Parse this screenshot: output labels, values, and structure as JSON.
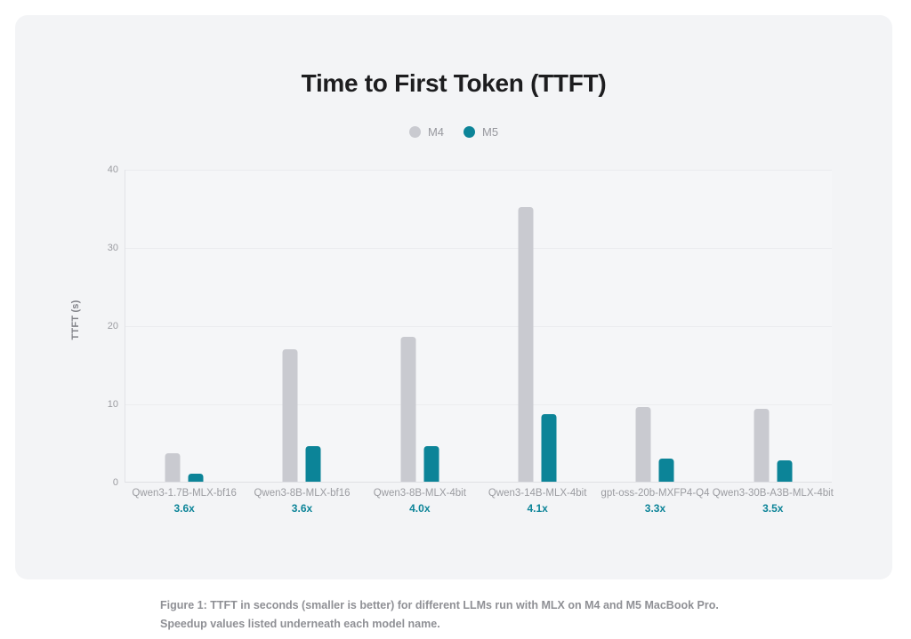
{
  "title": "Time to First Token (TTFT)",
  "legend": [
    {
      "label": "M4",
      "color": "#c9cad0"
    },
    {
      "label": "M5",
      "color": "#0c8498"
    }
  ],
  "y_axis": {
    "label": "TTFT (s)",
    "ticks": [
      40,
      30,
      20,
      10,
      0
    ],
    "max": 40
  },
  "chart_data": {
    "type": "bar",
    "title": "Time to First Token (TTFT)",
    "categories": [
      "Qwen3-1.7B-MLX-bf16",
      "Qwen3-8B-MLX-bf16",
      "Qwen3-8B-MLX-4bit",
      "Qwen3-14B-MLX-4bit",
      "gpt-oss-20b-MXFP4-Q4",
      "Qwen3-30B-A3B-MLX-4bit"
    ],
    "series": [
      {
        "name": "M4",
        "color": "#c9cad0",
        "values": [
          3.6,
          16.9,
          18.5,
          35.1,
          9.5,
          9.3
        ]
      },
      {
        "name": "M5",
        "color": "#0c8498",
        "values": [
          1.0,
          4.6,
          4.6,
          8.6,
          2.9,
          2.7
        ]
      }
    ],
    "speedups": [
      "3.6x",
      "3.6x",
      "4.0x",
      "4.1x",
      "3.3x",
      "3.5x"
    ],
    "xlabel": "",
    "ylabel": "TTFT (s)",
    "ylim": [
      0,
      40
    ],
    "grid": true,
    "legend_position": "top-center"
  },
  "speedup_color": "#0c8498",
  "caption": "Figure 1: TTFT in seconds (smaller is better) for different LLMs run with MLX on M4 and M5 MacBook Pro. Speedup values listed underneath each model name."
}
